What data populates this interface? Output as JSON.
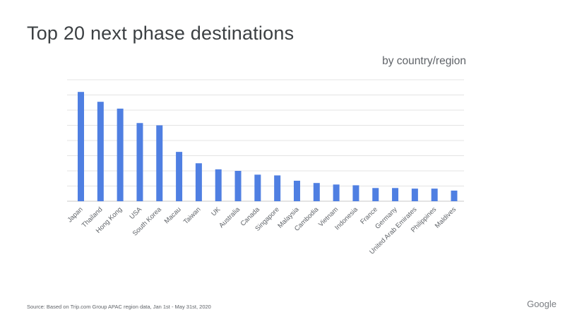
{
  "slide": {
    "title": "Top 20 next phase destinations",
    "subtitle": "by country/region",
    "source": "Source: Based on Trip.com Group APAC region data, Jan 1st - May 31st, 2020",
    "logo": "Google"
  },
  "chart_data": {
    "type": "bar",
    "title": "Top 20 next phase destinations",
    "subtitle": "by country/region",
    "xlabel": "",
    "ylabel": "",
    "categories": [
      "Japan",
      "Thailand",
      "Hong Kong",
      "USA",
      "South Korea",
      "Macau",
      "Taiwan",
      "UK",
      "Australia",
      "Canada",
      "Singapore",
      "Malaysia",
      "Cambodia",
      "Vietnam",
      "Indonesia",
      "France",
      "Germany",
      "United Arab Emirates",
      "Philippines",
      "Maldives"
    ],
    "values": [
      72,
      65.5,
      61,
      51.5,
      50,
      32.5,
      25,
      21,
      20,
      17.5,
      17,
      13.5,
      12,
      11,
      10.5,
      8.7,
      8.7,
      8.3,
      8.3,
      7
    ],
    "ylim": [
      0,
      80
    ],
    "gridlines": [
      0,
      10,
      20,
      30,
      40,
      50,
      60,
      70,
      80
    ],
    "y_tick_labels_shown": false,
    "grid": true,
    "legend": "none",
    "colors": {
      "bar": "#4f7fe2",
      "grid": "#e4e4e4",
      "label": "#5f6368"
    }
  }
}
